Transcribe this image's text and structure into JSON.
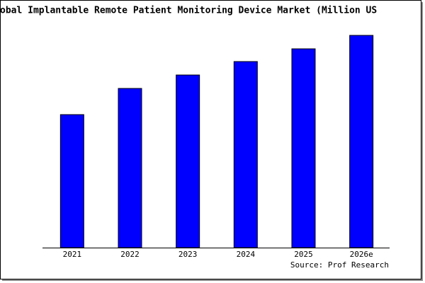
{
  "chart_data": {
    "type": "bar",
    "title": "obal Implantable Remote Patient Monitoring Device Market (Million US",
    "categories": [
      "2021",
      "2022",
      "2023",
      "2024",
      "2025",
      "2026e"
    ],
    "values": [
      188,
      225,
      244,
      263,
      281,
      300
    ],
    "color": "#0000ff",
    "source": "Source: Prof Research"
  }
}
